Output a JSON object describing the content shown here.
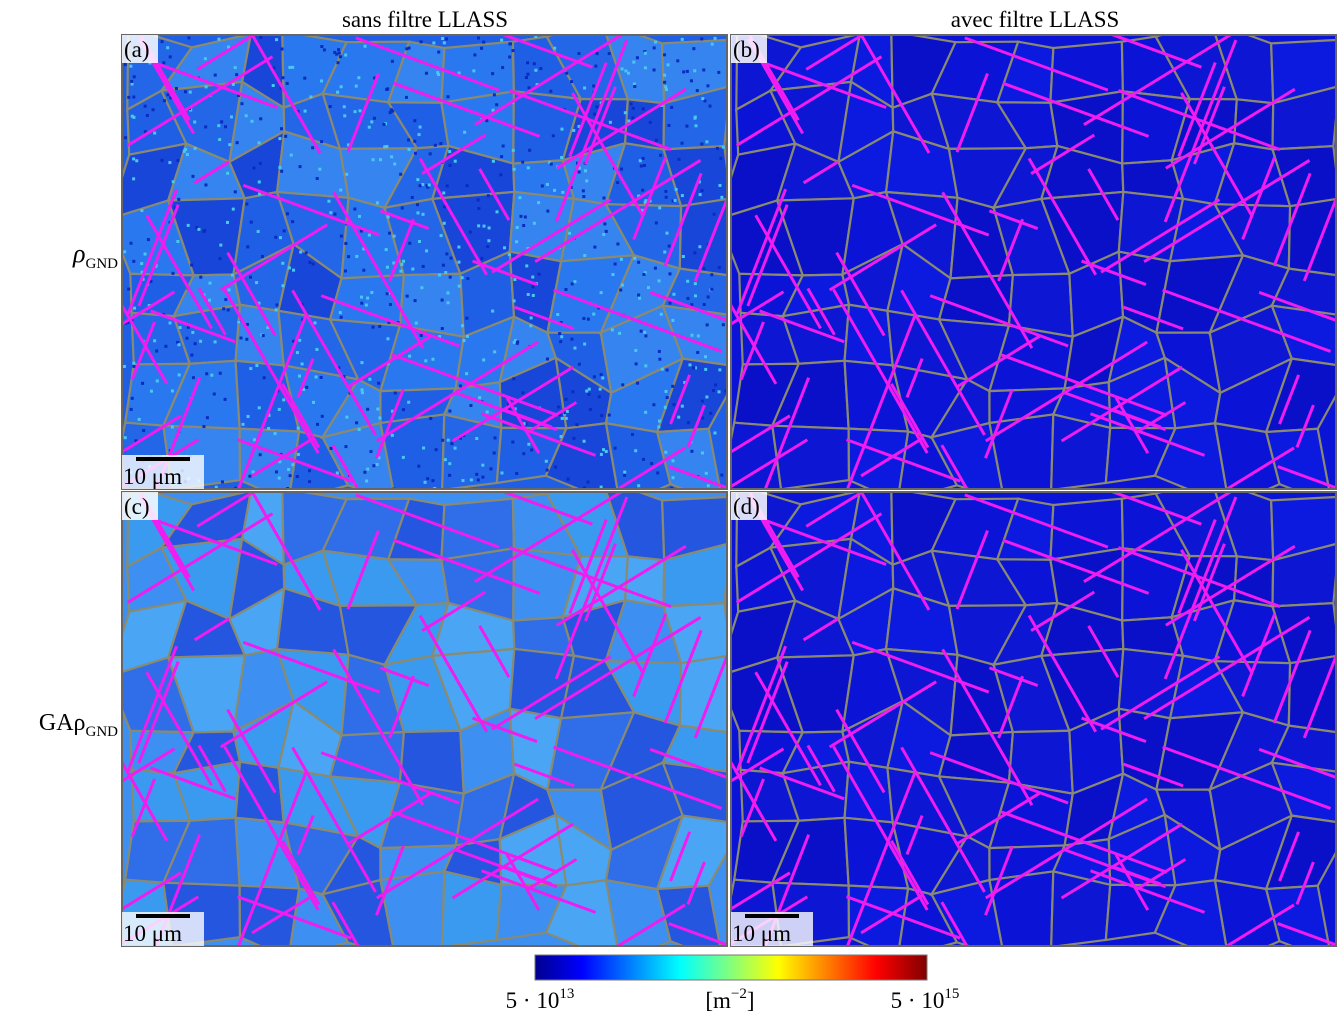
{
  "columns": [
    "sans filtre LLASS",
    "avec filtre LLASS"
  ],
  "rows": [
    {
      "symbol": "ρ",
      "subscript": "GND"
    },
    {
      "symbol": "GAρ",
      "subscript": "GND"
    }
  ],
  "panels": [
    {
      "label": "(a)",
      "scale_bar": "10 μm"
    },
    {
      "label": "(b)"
    },
    {
      "label": "(c)",
      "scale_bar": "10 μm"
    },
    {
      "label": "(d)",
      "scale_bar": "10 μm"
    }
  ],
  "colorbar": {
    "min": {
      "base": "5 · 10",
      "exponent": "13"
    },
    "unit": {
      "open": "[m",
      "exponent": "−2",
      "close": "]"
    },
    "max": {
      "base": "5 · 10",
      "exponent": "15"
    }
  }
}
